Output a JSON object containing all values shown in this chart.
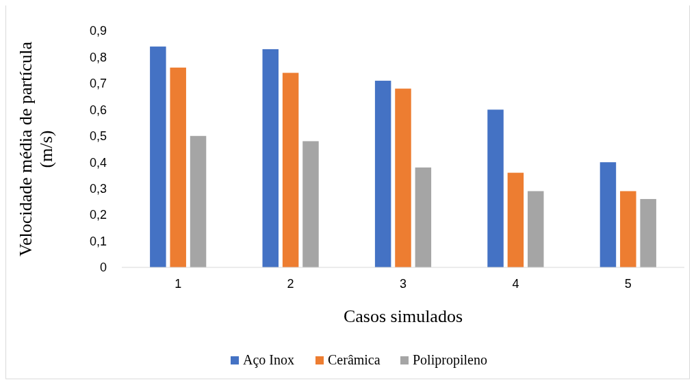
{
  "chart_data": {
    "type": "bar",
    "xlabel": "Casos simulados",
    "ylabel": "Velocidade média de partícula (m/s)",
    "categories": [
      "1",
      "2",
      "3",
      "4",
      "5"
    ],
    "series": [
      {
        "name": "Aço Inox",
        "color": "#4472c4",
        "values": [
          0.84,
          0.83,
          0.71,
          0.6,
          0.4
        ]
      },
      {
        "name": "Cerâmica",
        "color": "#ed7d31",
        "values": [
          0.76,
          0.74,
          0.68,
          0.36,
          0.29
        ]
      },
      {
        "name": "Polipropileno",
        "color": "#a5a5a5",
        "values": [
          0.5,
          0.48,
          0.38,
          0.29,
          0.26
        ]
      }
    ],
    "ylim": [
      0,
      0.9
    ],
    "yticks": [
      {
        "value": 0,
        "label": "0"
      },
      {
        "value": 0.1,
        "label": "0,1"
      },
      {
        "value": 0.2,
        "label": "0,2"
      },
      {
        "value": 0.3,
        "label": "0,3"
      },
      {
        "value": 0.4,
        "label": "0,4"
      },
      {
        "value": 0.5,
        "label": "0,5"
      },
      {
        "value": 0.6,
        "label": "0,6"
      },
      {
        "value": 0.7,
        "label": "0,7"
      },
      {
        "value": 0.8,
        "label": "0,8"
      },
      {
        "value": 0.9,
        "label": "0,9"
      }
    ],
    "grid": false,
    "legend": "bottom"
  }
}
